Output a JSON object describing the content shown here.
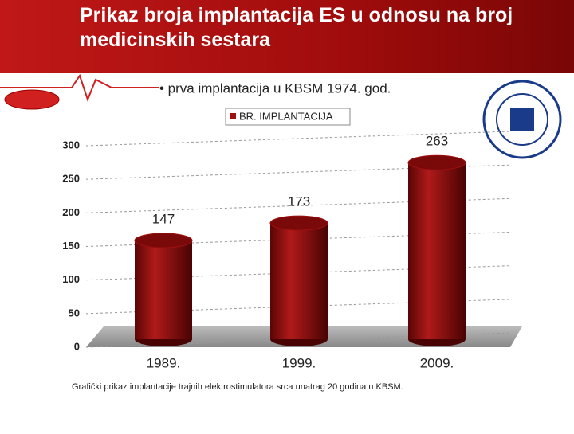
{
  "slide": {
    "title": "Prikaz broja implantacija ES u odnosu na broj medicinskih sestara",
    "bullet": "• prva implantacija u KBSM 1974. god.",
    "caption": "Grafički prikaz implantacije trajnih elektrostimulatora srca unatrag 20 godina u KBSM."
  },
  "chart_data": {
    "type": "bar",
    "categories": [
      "1989.",
      "1999.",
      "2009."
    ],
    "series": [
      {
        "name": "BR. IMPLANTACIJA",
        "color": "#a01010",
        "values": [
          147,
          173,
          263
        ]
      }
    ],
    "ylim": [
      0,
      300
    ],
    "yticks": [
      0,
      50,
      100,
      150,
      200,
      250,
      300
    ],
    "grid": true,
    "legend": "top"
  }
}
